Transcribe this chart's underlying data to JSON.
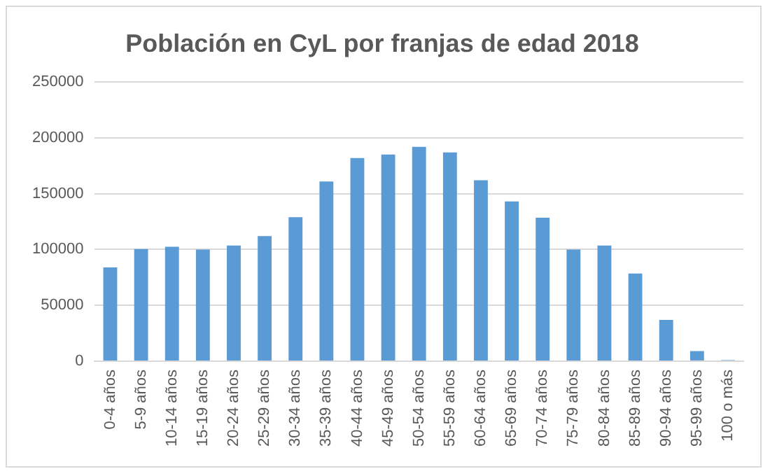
{
  "chart_data": {
    "type": "bar",
    "title": "Población en CyL por franjas de edad 2018",
    "categories": [
      "0-4 años",
      "5-9 años",
      "10-14 años",
      "15-19 años",
      "20-24 años",
      "25-29 años",
      "30-34 años",
      "35-39 años",
      "40-44 años",
      "45-49 años",
      "50-54 años",
      "55-59 años",
      "60-64 años",
      "65-69 años",
      "70-74 años",
      "75-79 años",
      "80-84 años",
      "85-89 años",
      "90-94 años",
      "95-99 años",
      "100 o más"
    ],
    "values": [
      84000,
      100500,
      102500,
      100000,
      103500,
      112000,
      129000,
      161000,
      182000,
      185000,
      192000,
      187000,
      162000,
      143000,
      128500,
      100000,
      103500,
      78500,
      37000,
      9000,
      1000
    ],
    "color": "#5b9bd5",
    "ylim": [
      0,
      250000
    ],
    "yticks": [
      0,
      50000,
      100000,
      150000,
      200000,
      250000
    ],
    "grid": "y"
  }
}
